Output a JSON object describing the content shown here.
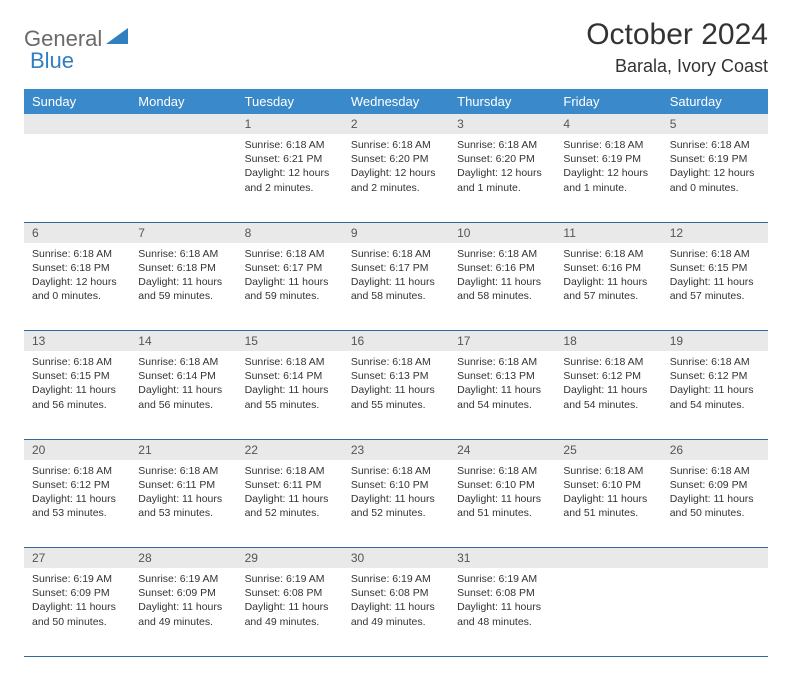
{
  "brand": {
    "part1": "General",
    "part2": "Blue"
  },
  "title": "October 2024",
  "location": "Barala, Ivory Coast",
  "colors": {
    "header_bg": "#3a8acb",
    "header_fg": "#ffffff",
    "daynum_bg": "#e9e9ea",
    "rule": "#30699e",
    "brand_gray": "#6a6a6a",
    "brand_blue": "#2f7fc1"
  },
  "days": [
    "Sunday",
    "Monday",
    "Tuesday",
    "Wednesday",
    "Thursday",
    "Friday",
    "Saturday"
  ],
  "weeks": [
    [
      null,
      null,
      {
        "n": "1",
        "sr": "6:18 AM",
        "ss": "6:21 PM",
        "dl": "12 hours and 2 minutes."
      },
      {
        "n": "2",
        "sr": "6:18 AM",
        "ss": "6:20 PM",
        "dl": "12 hours and 2 minutes."
      },
      {
        "n": "3",
        "sr": "6:18 AM",
        "ss": "6:20 PM",
        "dl": "12 hours and 1 minute."
      },
      {
        "n": "4",
        "sr": "6:18 AM",
        "ss": "6:19 PM",
        "dl": "12 hours and 1 minute."
      },
      {
        "n": "5",
        "sr": "6:18 AM",
        "ss": "6:19 PM",
        "dl": "12 hours and 0 minutes."
      }
    ],
    [
      {
        "n": "6",
        "sr": "6:18 AM",
        "ss": "6:18 PM",
        "dl": "12 hours and 0 minutes."
      },
      {
        "n": "7",
        "sr": "6:18 AM",
        "ss": "6:18 PM",
        "dl": "11 hours and 59 minutes."
      },
      {
        "n": "8",
        "sr": "6:18 AM",
        "ss": "6:17 PM",
        "dl": "11 hours and 59 minutes."
      },
      {
        "n": "9",
        "sr": "6:18 AM",
        "ss": "6:17 PM",
        "dl": "11 hours and 58 minutes."
      },
      {
        "n": "10",
        "sr": "6:18 AM",
        "ss": "6:16 PM",
        "dl": "11 hours and 58 minutes."
      },
      {
        "n": "11",
        "sr": "6:18 AM",
        "ss": "6:16 PM",
        "dl": "11 hours and 57 minutes."
      },
      {
        "n": "12",
        "sr": "6:18 AM",
        "ss": "6:15 PM",
        "dl": "11 hours and 57 minutes."
      }
    ],
    [
      {
        "n": "13",
        "sr": "6:18 AM",
        "ss": "6:15 PM",
        "dl": "11 hours and 56 minutes."
      },
      {
        "n": "14",
        "sr": "6:18 AM",
        "ss": "6:14 PM",
        "dl": "11 hours and 56 minutes."
      },
      {
        "n": "15",
        "sr": "6:18 AM",
        "ss": "6:14 PM",
        "dl": "11 hours and 55 minutes."
      },
      {
        "n": "16",
        "sr": "6:18 AM",
        "ss": "6:13 PM",
        "dl": "11 hours and 55 minutes."
      },
      {
        "n": "17",
        "sr": "6:18 AM",
        "ss": "6:13 PM",
        "dl": "11 hours and 54 minutes."
      },
      {
        "n": "18",
        "sr": "6:18 AM",
        "ss": "6:12 PM",
        "dl": "11 hours and 54 minutes."
      },
      {
        "n": "19",
        "sr": "6:18 AM",
        "ss": "6:12 PM",
        "dl": "11 hours and 54 minutes."
      }
    ],
    [
      {
        "n": "20",
        "sr": "6:18 AM",
        "ss": "6:12 PM",
        "dl": "11 hours and 53 minutes."
      },
      {
        "n": "21",
        "sr": "6:18 AM",
        "ss": "6:11 PM",
        "dl": "11 hours and 53 minutes."
      },
      {
        "n": "22",
        "sr": "6:18 AM",
        "ss": "6:11 PM",
        "dl": "11 hours and 52 minutes."
      },
      {
        "n": "23",
        "sr": "6:18 AM",
        "ss": "6:10 PM",
        "dl": "11 hours and 52 minutes."
      },
      {
        "n": "24",
        "sr": "6:18 AM",
        "ss": "6:10 PM",
        "dl": "11 hours and 51 minutes."
      },
      {
        "n": "25",
        "sr": "6:18 AM",
        "ss": "6:10 PM",
        "dl": "11 hours and 51 minutes."
      },
      {
        "n": "26",
        "sr": "6:18 AM",
        "ss": "6:09 PM",
        "dl": "11 hours and 50 minutes."
      }
    ],
    [
      {
        "n": "27",
        "sr": "6:19 AM",
        "ss": "6:09 PM",
        "dl": "11 hours and 50 minutes."
      },
      {
        "n": "28",
        "sr": "6:19 AM",
        "ss": "6:09 PM",
        "dl": "11 hours and 49 minutes."
      },
      {
        "n": "29",
        "sr": "6:19 AM",
        "ss": "6:08 PM",
        "dl": "11 hours and 49 minutes."
      },
      {
        "n": "30",
        "sr": "6:19 AM",
        "ss": "6:08 PM",
        "dl": "11 hours and 49 minutes."
      },
      {
        "n": "31",
        "sr": "6:19 AM",
        "ss": "6:08 PM",
        "dl": "11 hours and 48 minutes."
      },
      null,
      null
    ]
  ]
}
